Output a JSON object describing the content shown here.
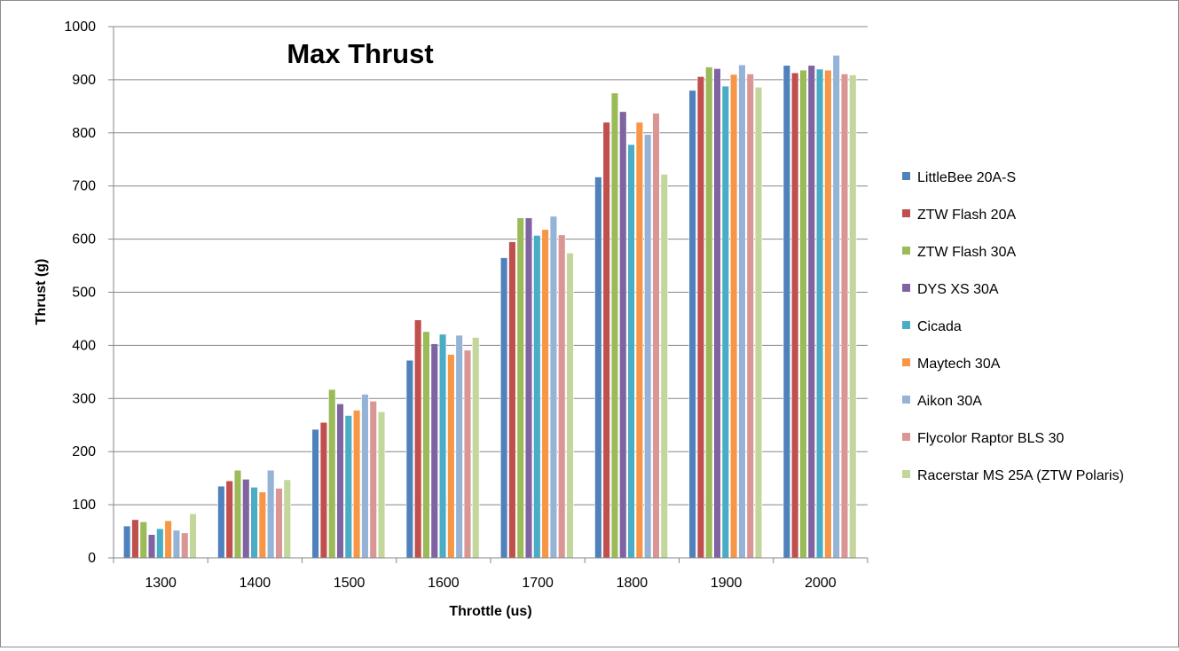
{
  "chart_data": {
    "type": "bar",
    "title": "Max Thrust",
    "xlabel": "Throttle (us)",
    "ylabel": "Thrust (g)",
    "ylim": [
      0,
      1000
    ],
    "yticks": [
      0,
      100,
      200,
      300,
      400,
      500,
      600,
      700,
      800,
      900,
      1000
    ],
    "grid": true,
    "legend_position": "right",
    "categories": [
      "1300",
      "1400",
      "1500",
      "1600",
      "1700",
      "1800",
      "1900",
      "2000"
    ],
    "series": [
      {
        "name": "LittleBee 20A-S",
        "color": "#4f81bd",
        "values": [
          60,
          135,
          242,
          372,
          565,
          717,
          880,
          927
        ]
      },
      {
        "name": "ZTW Flash 20A",
        "color": "#c0504d",
        "values": [
          72,
          145,
          255,
          448,
          595,
          820,
          906,
          913
        ]
      },
      {
        "name": "ZTW Flash 30A",
        "color": "#9bbb59",
        "values": [
          68,
          165,
          317,
          426,
          640,
          875,
          924,
          918
        ]
      },
      {
        "name": "DYS XS 30A",
        "color": "#8064a2",
        "values": [
          44,
          148,
          290,
          403,
          640,
          840,
          921,
          927
        ]
      },
      {
        "name": "Cicada",
        "color": "#4bacc6",
        "values": [
          55,
          133,
          268,
          421,
          607,
          778,
          888,
          920
        ]
      },
      {
        "name": "Maytech 30A",
        "color": "#f79646",
        "values": [
          70,
          124,
          278,
          383,
          618,
          820,
          910,
          918
        ]
      },
      {
        "name": "Aikon 30A",
        "color": "#95b3d7",
        "values": [
          52,
          165,
          308,
          419,
          643,
          797,
          928,
          946
        ]
      },
      {
        "name": "Flycolor Raptor BLS 30",
        "color": "#d99694",
        "values": [
          47,
          131,
          295,
          391,
          608,
          837,
          911,
          911
        ]
      },
      {
        "name": "Racerstar MS 25A (ZTW Polaris)",
        "color": "#c3d69b",
        "values": [
          83,
          147,
          275,
          415,
          574,
          722,
          886,
          909
        ]
      }
    ]
  }
}
